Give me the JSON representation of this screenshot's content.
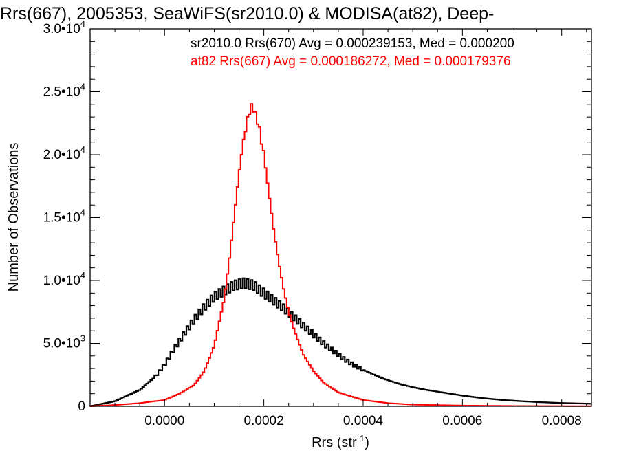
{
  "chart_data": {
    "type": "histogram",
    "title": "Rrs(667), 2005353, SeaWiFS(sr2010.0) & MODISA(at82), Deep-",
    "xlabel": "Rrs (str",
    "xlabel_sup": "-1",
    "xlabel_end": ")",
    "ylabel": "Number of Observations",
    "xlim": [
      -0.00015,
      0.00086
    ],
    "ylim": [
      0,
      30000
    ],
    "xticks": [
      {
        "value": 0.0,
        "label": "0.0000"
      },
      {
        "value": 0.0002,
        "label": "0.0002"
      },
      {
        "value": 0.0004,
        "label": "0.0004"
      },
      {
        "value": 0.0006,
        "label": "0.0006"
      },
      {
        "value": 0.0008,
        "label": "0.0008"
      }
    ],
    "yticks": [
      {
        "value": 0,
        "mant": "0",
        "exp": ""
      },
      {
        "value": 5000,
        "mant": "5.0•10",
        "exp": "3"
      },
      {
        "value": 10000,
        "mant": "1.0•10",
        "exp": "4"
      },
      {
        "value": 15000,
        "mant": "1.5•10",
        "exp": "4"
      },
      {
        "value": 20000,
        "mant": "2.0•10",
        "exp": "4"
      },
      {
        "value": 25000,
        "mant": "2.5•10",
        "exp": "4"
      },
      {
        "value": 30000,
        "mant": "3.0•10",
        "exp": "4"
      }
    ],
    "legend_position": "top",
    "series": [
      {
        "name": "sr2010.0 Rrs(670) Avg = 0.000239153, Med = 0.000200",
        "color": "#000000",
        "bin_edges_range": [
          -0.00015,
          0.00086
        ],
        "points": [
          [
            -0.00015,
            0
          ],
          [
            -0.0001,
            400
          ],
          [
            -5e-05,
            1300
          ],
          [
            -2e-05,
            2300
          ],
          [
            0.0,
            3300
          ],
          [
            2e-05,
            4600
          ],
          [
            4e-05,
            5800
          ],
          [
            6e-05,
            6900
          ],
          [
            8e-05,
            7900
          ],
          [
            0.0001,
            8700
          ],
          [
            0.00012,
            9200
          ],
          [
            0.00014,
            9600
          ],
          [
            0.00016,
            9800
          ],
          [
            0.00018,
            9600
          ],
          [
            0.0002,
            9000
          ],
          [
            0.00022,
            8400
          ],
          [
            0.00024,
            7800
          ],
          [
            0.00026,
            7100
          ],
          [
            0.00028,
            6400
          ],
          [
            0.0003,
            5700
          ],
          [
            0.00032,
            5000
          ],
          [
            0.00034,
            4400
          ],
          [
            0.00036,
            3800
          ],
          [
            0.00038,
            3300
          ],
          [
            0.0004,
            2900
          ],
          [
            0.00044,
            2200
          ],
          [
            0.00048,
            1700
          ],
          [
            0.00052,
            1350
          ],
          [
            0.00056,
            1100
          ],
          [
            0.0006,
            850
          ],
          [
            0.00064,
            650
          ],
          [
            0.00068,
            500
          ],
          [
            0.00072,
            400
          ],
          [
            0.00076,
            320
          ],
          [
            0.0008,
            260
          ],
          [
            0.00086,
            200
          ]
        ]
      },
      {
        "name": "at82 Rrs(667) Avg = 0.000186272, Med = 0.000179376",
        "color": "#ff0000",
        "bin_edges_range": [
          -0.00015,
          0.00086
        ],
        "points": [
          [
            -0.00015,
            0
          ],
          [
            -0.0001,
            100
          ],
          [
            -5e-05,
            250
          ],
          [
            0.0,
            500
          ],
          [
            3e-05,
            1000
          ],
          [
            6e-05,
            1700
          ],
          [
            8e-05,
            2800
          ],
          [
            0.0001,
            4800
          ],
          [
            0.00012,
            8500
          ],
          [
            0.00013,
            11500
          ],
          [
            0.00014,
            15000
          ],
          [
            0.00015,
            18500
          ],
          [
            0.00016,
            21500
          ],
          [
            0.00017,
            23300
          ],
          [
            0.000175,
            23800
          ],
          [
            0.00018,
            23600
          ],
          [
            0.00019,
            22300
          ],
          [
            0.0002,
            20000
          ],
          [
            0.00021,
            17000
          ],
          [
            0.00022,
            14000
          ],
          [
            0.00023,
            11500
          ],
          [
            0.00024,
            9300
          ],
          [
            0.00025,
            7500
          ],
          [
            0.00026,
            6200
          ],
          [
            0.00027,
            5100
          ],
          [
            0.00028,
            4100
          ],
          [
            0.0003,
            2800
          ],
          [
            0.00032,
            1900
          ],
          [
            0.00035,
            1100
          ],
          [
            0.0004,
            500
          ],
          [
            0.00045,
            250
          ],
          [
            0.0005,
            130
          ],
          [
            0.0006,
            60
          ],
          [
            0.0007,
            30
          ],
          [
            0.00086,
            10
          ]
        ]
      }
    ]
  }
}
